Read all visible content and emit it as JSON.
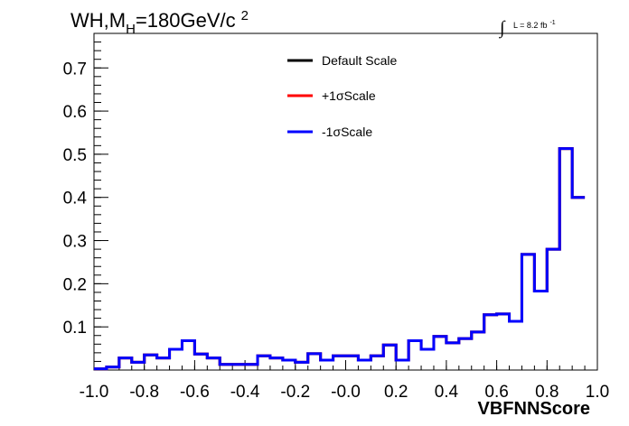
{
  "chart_data": {
    "type": "line",
    "title_parts": {
      "prefix": "WH,M",
      "subscript": "H",
      "main": "=180GeV/c",
      "superscript": "2"
    },
    "luminosity": {
      "integral": "∫",
      "text": "L = 8.2 fb",
      "superscript": "-1"
    },
    "xlabel": "VBFNNScore",
    "ylabel": "",
    "xlim": [
      -1.0,
      1.0
    ],
    "ylim": [
      0.0,
      0.78
    ],
    "x_ticks": [
      "-1.0",
      "-0.8",
      "-0.6",
      "-0.4",
      "-0.2",
      "-0.0",
      "0.2",
      "0.4",
      "0.6",
      "0.8",
      "1.0"
    ],
    "y_ticks": [
      "0.1",
      "0.2",
      "0.3",
      "0.4",
      "0.5",
      "0.6",
      "0.7"
    ],
    "bin_edges_start": -1.0,
    "bin_width": 0.05,
    "series": [
      {
        "name": "Default Scale",
        "color": "#000000",
        "values": [
          0.003,
          0.007,
          0.028,
          0.018,
          0.035,
          0.028,
          0.048,
          0.068,
          0.037,
          0.028,
          0.013,
          0.013,
          0.013,
          0.033,
          0.028,
          0.023,
          0.018,
          0.038,
          0.023,
          0.033,
          0.033,
          0.023,
          0.033,
          0.058,
          0.023,
          0.068,
          0.048,
          0.078,
          0.063,
          0.073,
          0.088,
          0.128,
          0.13,
          0.113,
          0.268,
          0.183,
          0.28,
          0.513,
          0.4
        ]
      },
      {
        "name": "+1σScale",
        "color": "#ff0000",
        "values": [
          0.003,
          0.007,
          0.028,
          0.018,
          0.035,
          0.028,
          0.048,
          0.068,
          0.037,
          0.028,
          0.013,
          0.013,
          0.013,
          0.033,
          0.028,
          0.023,
          0.018,
          0.038,
          0.023,
          0.033,
          0.033,
          0.023,
          0.033,
          0.058,
          0.023,
          0.068,
          0.048,
          0.078,
          0.063,
          0.073,
          0.088,
          0.128,
          0.13,
          0.113,
          0.268,
          0.183,
          0.28,
          0.513,
          0.4
        ]
      },
      {
        "name": "-1σScale",
        "color": "#0000ff",
        "values": [
          0.003,
          0.007,
          0.028,
          0.018,
          0.035,
          0.028,
          0.048,
          0.068,
          0.037,
          0.028,
          0.013,
          0.013,
          0.013,
          0.033,
          0.028,
          0.023,
          0.018,
          0.038,
          0.023,
          0.033,
          0.033,
          0.023,
          0.033,
          0.058,
          0.023,
          0.068,
          0.048,
          0.078,
          0.063,
          0.073,
          0.088,
          0.128,
          0.13,
          0.113,
          0.268,
          0.183,
          0.28,
          0.513,
          0.4
        ]
      }
    ],
    "legend_position": "top-center"
  }
}
